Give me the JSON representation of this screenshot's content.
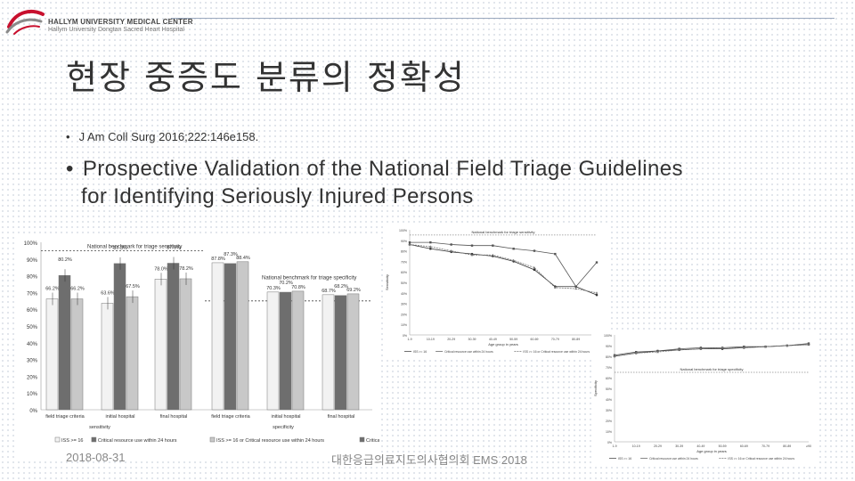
{
  "header": {
    "logo_name": "HALLYM UNIVERSITY MEDICAL CENTER",
    "logo_sub": "Hallym University Dongtan Sacred Heart Hospital"
  },
  "slide": {
    "title": "현장 중증도 분류의 정확성",
    "bullet1_marker": "•",
    "bullet1": "J Am Coll Surg 2016;222:146e158.",
    "bullet2_marker": "•",
    "bullet2_line1": "Prospective Validation of the National Field Triage Guidelines",
    "bullet2_line2": "for Identifying Seriously Injured Persons"
  },
  "footer": {
    "date": "2018-08-31",
    "center": "대한응급의료지도의사협의회 EMS 2018"
  },
  "chart_data": [
    {
      "type": "bar",
      "ylim": [
        0,
        100
      ],
      "yticks": [
        "0%",
        "10%",
        "20%",
        "30%",
        "40%",
        "50%",
        "60%",
        "70%",
        "80%",
        "90%",
        "100%"
      ],
      "categories": [
        "field triage criteria",
        "initial hospital",
        "final hospital",
        "field triage criteria",
        "initial hospital",
        "final hospital"
      ],
      "groups": [
        "sensitivity",
        "specificity"
      ],
      "series": [
        {
          "name": "ISS >= 16",
          "values": [
            66.2,
            63.6,
            78.0,
            87.8,
            70.3,
            68.7
          ],
          "labels": [
            "66.2%",
            "63.6%",
            "78.0%",
            "87.8%",
            "70.3%",
            "68.7%"
          ]
        },
        {
          "name": "Critical resource use within 24 hours",
          "values": [
            80.2,
            87.3,
            87.5,
            87.3,
            70.2,
            68.2
          ],
          "labels": [
            "80.2%",
            "87.3%",
            "87.5%",
            "87.3%",
            "70.2%",
            "68.2%"
          ]
        },
        {
          "name": "ISS >= 16 or Critical resource use within 24 hours",
          "values": [
            66.2,
            67.5,
            78.2,
            88.4,
            70.8,
            69.2
          ],
          "labels": [
            "66.2%",
            "67.5%",
            "78.2%",
            "88.4%",
            "70.8%",
            "69.2%"
          ]
        }
      ],
      "annotations": [
        "National benchmark for triage sensitivity",
        "National benchmark for triage specificity"
      ],
      "benchmarks": {
        "sensitivity": 95,
        "specificity": 65
      },
      "legend": [
        "ISS >= 16",
        "Critical resource use within 24 hours",
        "ISS >= 16 or Critical resource use within 24 hours"
      ],
      "colors": [
        "#f2f2f2",
        "#6e6e6e",
        "#c8c8c8"
      ]
    },
    {
      "type": "line",
      "ylabel": "Sensitivity",
      "xlabel": "Age group in years",
      "title": "National benchmark for triage sensitivity",
      "ylim": [
        0,
        100
      ],
      "categories": [
        "1-9",
        "10-19",
        "20-29",
        "30-39",
        "40-49",
        "50-59",
        "60-69",
        "70-79",
        "80-89",
        "≥90"
      ],
      "series": [
        {
          "name": "ISS >= 16",
          "values": [
            86,
            82,
            79,
            77,
            75,
            70,
            62,
            46,
            46,
            38
          ]
        },
        {
          "name": "Critical resource use within 24 hours",
          "values": [
            88,
            88,
            86,
            85,
            85,
            82,
            80,
            77,
            46,
            69
          ]
        },
        {
          "name": "ISS >= 16 or Critical resource use within 24 hours",
          "values": [
            86,
            84,
            80,
            76,
            76,
            71,
            64,
            45,
            44,
            40
          ]
        }
      ]
    },
    {
      "type": "line",
      "ylabel": "Specificity",
      "xlabel": "Age group in years",
      "title": "National benchmark for triage specificity",
      "ylim": [
        0,
        100
      ],
      "categories": [
        "1-9",
        "10-19",
        "20-29",
        "30-39",
        "40-49",
        "50-59",
        "60-69",
        "70-79",
        "80-89",
        "≥90"
      ],
      "series": [
        {
          "name": "ISS >= 16",
          "values": [
            80,
            83,
            85,
            86,
            87,
            87,
            88,
            89,
            90,
            91
          ]
        },
        {
          "name": "Critical resource use within 24 hours",
          "values": [
            81,
            84,
            85,
            87,
            88,
            88,
            89,
            89,
            90,
            92
          ]
        },
        {
          "name": "ISS >= 16 or Critical resource use within 24 hours",
          "values": [
            80,
            83,
            84,
            86,
            87,
            88,
            88,
            89,
            90,
            91
          ]
        }
      ]
    }
  ]
}
